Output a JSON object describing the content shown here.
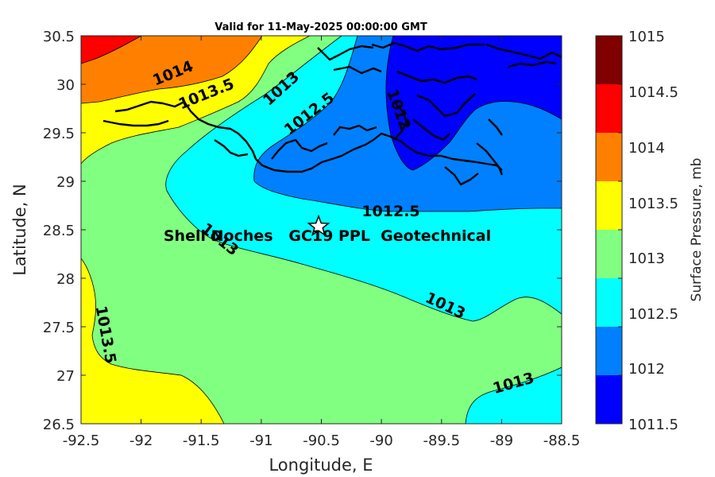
{
  "title": "Valid for 11-May-2025 00:00:00 GMT",
  "xlabel": "Longitude, E",
  "ylabel": "Latitude, N",
  "colorbar_label": "Surface Pressure, mb",
  "site_label": "Shell Noches   GC19 PPL  Geotechnical",
  "chart_data": {
    "type": "contour-map",
    "title": "Valid for 11-May-2025 00:00:00 GMT",
    "xlabel": "Longitude, E",
    "ylabel": "Latitude, N",
    "xlim": [
      -92.5,
      -88.5
    ],
    "ylim": [
      26.5,
      30.5
    ],
    "x_ticks": [
      "-92.5",
      "-92",
      "-91.5",
      "-91",
      "-90.5",
      "-90",
      "-89.5",
      "-89",
      "-88.5"
    ],
    "y_ticks": [
      "30.5",
      "30",
      "29.5",
      "29",
      "28.5",
      "28",
      "27.5",
      "27",
      "26.5"
    ],
    "colorbar": {
      "label": "Surface Pressure, mb",
      "levels": [
        1011.5,
        1012,
        1012.5,
        1013,
        1013.5,
        1014,
        1014.5,
        1015
      ],
      "tick_labels": [
        "1015",
        "1014.5",
        "1014",
        "1013.5",
        "1013",
        "1012.5",
        "1012",
        "1011.5"
      ],
      "colors": [
        "#0000ff",
        "#0080ff",
        "#00ffff",
        "#80ff80",
        "#ffff00",
        "#ff8000",
        "#ff0000",
        "#800000"
      ]
    },
    "contour_labels": [
      {
        "text": "1014",
        "lon": -92.13,
        "lat": 30.08
      },
      {
        "text": "1013.5",
        "lon": -91.76,
        "lat": 29.86
      },
      {
        "text": "1013",
        "lon": -91.25,
        "lat": 29.95
      },
      {
        "text": "1012.5",
        "lon": -90.95,
        "lat": 29.67
      },
      {
        "text": "1012",
        "lon": -89.86,
        "lat": 29.68
      },
      {
        "text": "1012.5",
        "lon": -90.15,
        "lat": 28.67
      },
      {
        "text": "1013",
        "lon": -91.35,
        "lat": 28.4
      },
      {
        "text": "1013",
        "lon": -89.6,
        "lat": 27.85
      },
      {
        "text": "1013.5",
        "lon": -92.33,
        "lat": 27.45
      },
      {
        "text": "1013",
        "lon": -89.0,
        "lat": 26.95
      }
    ],
    "site": {
      "name": "Shell Noches   GC19 PPL  Geotechnical",
      "lon": -90.52,
      "lat": 28.55,
      "marker": "star"
    }
  }
}
